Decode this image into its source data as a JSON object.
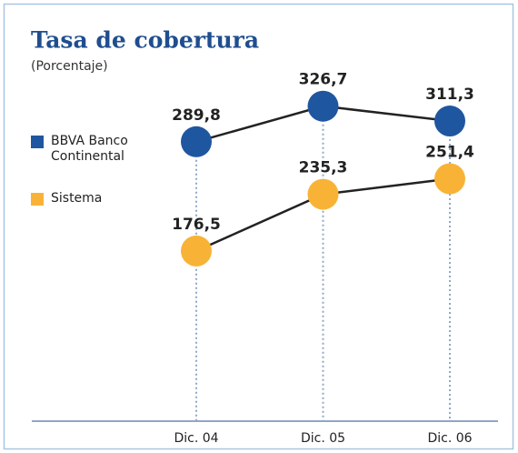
{
  "chart_data": {
    "type": "line",
    "title": "Tasa de cobertura",
    "subtitle": "(Porcentaje)",
    "categories": [
      "Dic. 04",
      "Dic. 05",
      "Dic. 06"
    ],
    "series": [
      {
        "name": "BBVA Banco Continental",
        "color": "#1f56a0",
        "values": [
          289.8,
          326.7,
          311.3
        ],
        "value_labels": [
          "289,8",
          "326,7",
          "311,3"
        ]
      },
      {
        "name": "Sistema",
        "color": "#f8b336",
        "values": [
          176.5,
          235.3,
          251.4
        ],
        "value_labels": [
          "176,5",
          "235,3",
          "251,4"
        ]
      }
    ],
    "ylim": [
      0,
      400
    ]
  }
}
